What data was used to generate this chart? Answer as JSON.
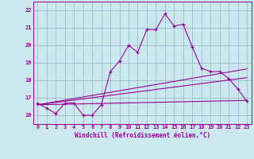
{
  "xlabel": "Windchill (Refroidissement éolien,°C)",
  "xlim": [
    -0.5,
    23.5
  ],
  "ylim": [
    15.5,
    22.5
  ],
  "yticks": [
    16,
    17,
    18,
    19,
    20,
    21,
    22
  ],
  "xticks": [
    0,
    1,
    2,
    3,
    4,
    5,
    6,
    7,
    8,
    9,
    10,
    11,
    12,
    13,
    14,
    15,
    16,
    17,
    18,
    19,
    20,
    21,
    22,
    23
  ],
  "bg_color": "#cce8ef",
  "line_color": "#990099",
  "grid_color": "#99bbcc",
  "line1_x": [
    0,
    1,
    2,
    3,
    4,
    5,
    6,
    7,
    8,
    9,
    10,
    11,
    12,
    13,
    14,
    15,
    16,
    17,
    18,
    19,
    20,
    21,
    22,
    23
  ],
  "line1_y": [
    16.7,
    16.4,
    16.1,
    16.7,
    16.7,
    16.0,
    16.0,
    16.6,
    18.5,
    19.1,
    20.0,
    19.6,
    20.9,
    20.9,
    21.8,
    21.1,
    21.2,
    19.9,
    18.7,
    18.5,
    18.5,
    18.1,
    17.5,
    16.8
  ],
  "line2_x": [
    0,
    23
  ],
  "line2_y": [
    16.6,
    16.85
  ],
  "line3_x": [
    0,
    23
  ],
  "line3_y": [
    16.6,
    18.15
  ],
  "line4_x": [
    0,
    23
  ],
  "line4_y": [
    16.6,
    18.65
  ]
}
